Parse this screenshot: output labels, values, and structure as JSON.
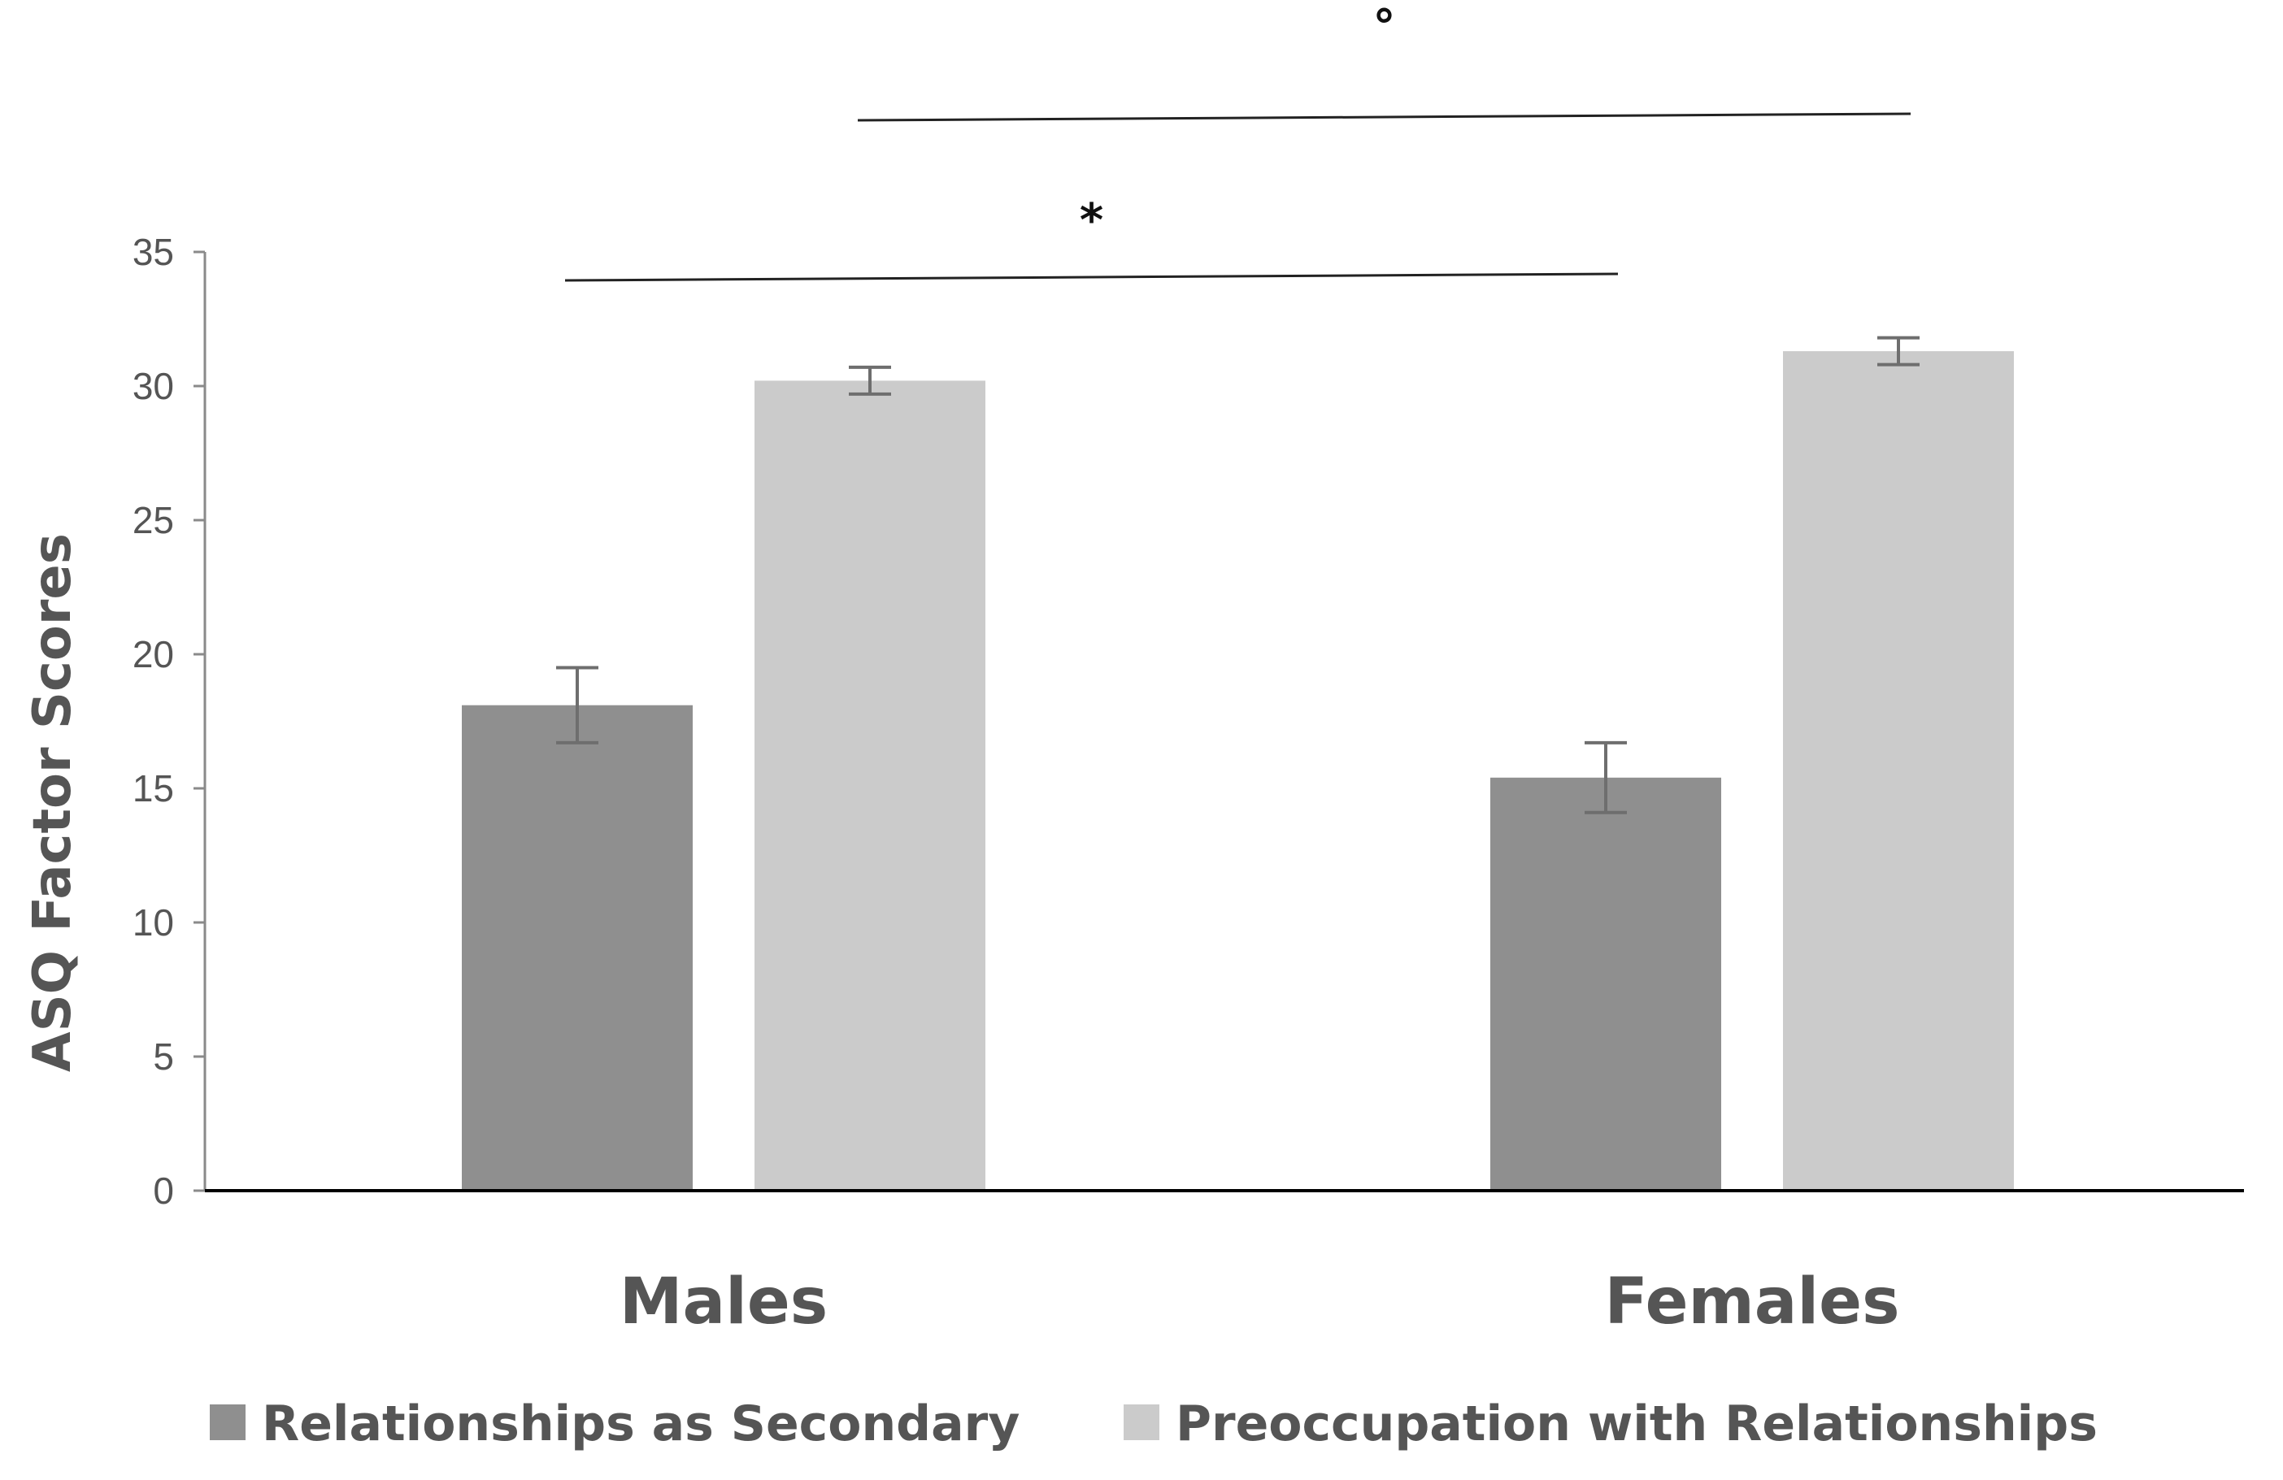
{
  "chart_data": {
    "type": "bar",
    "title": "",
    "xlabel": "",
    "ylabel": "ASQ Factor Scores",
    "ylim": [
      0,
      35
    ],
    "yticks": [
      0,
      5,
      10,
      15,
      20,
      25,
      30,
      35
    ],
    "grid": false,
    "legend_position": "bottom",
    "categories": [
      "Males",
      "Females"
    ],
    "series": [
      {
        "name": "Relationships as Secondary",
        "color": "#8f8f8f",
        "values": [
          18.1,
          15.4
        ],
        "error": [
          1.4,
          1.3
        ]
      },
      {
        "name": "Preoccupation with Relationships",
        "color": "#cbcbcb",
        "values": [
          30.2,
          31.3
        ],
        "error": [
          0.5,
          0.5
        ]
      }
    ],
    "annotations": [
      {
        "label": "*",
        "from": {
          "category": "Males",
          "series": "Relationships as Secondary"
        },
        "to": {
          "category": "Females",
          "series": "Relationships as Secondary"
        },
        "level": "lower"
      },
      {
        "label": "°",
        "from": {
          "category": "Males",
          "series": "Preoccupation with Relationships"
        },
        "to": {
          "category": "Females",
          "series": "Preoccupation with Relationships"
        },
        "level": "upper"
      }
    ]
  }
}
